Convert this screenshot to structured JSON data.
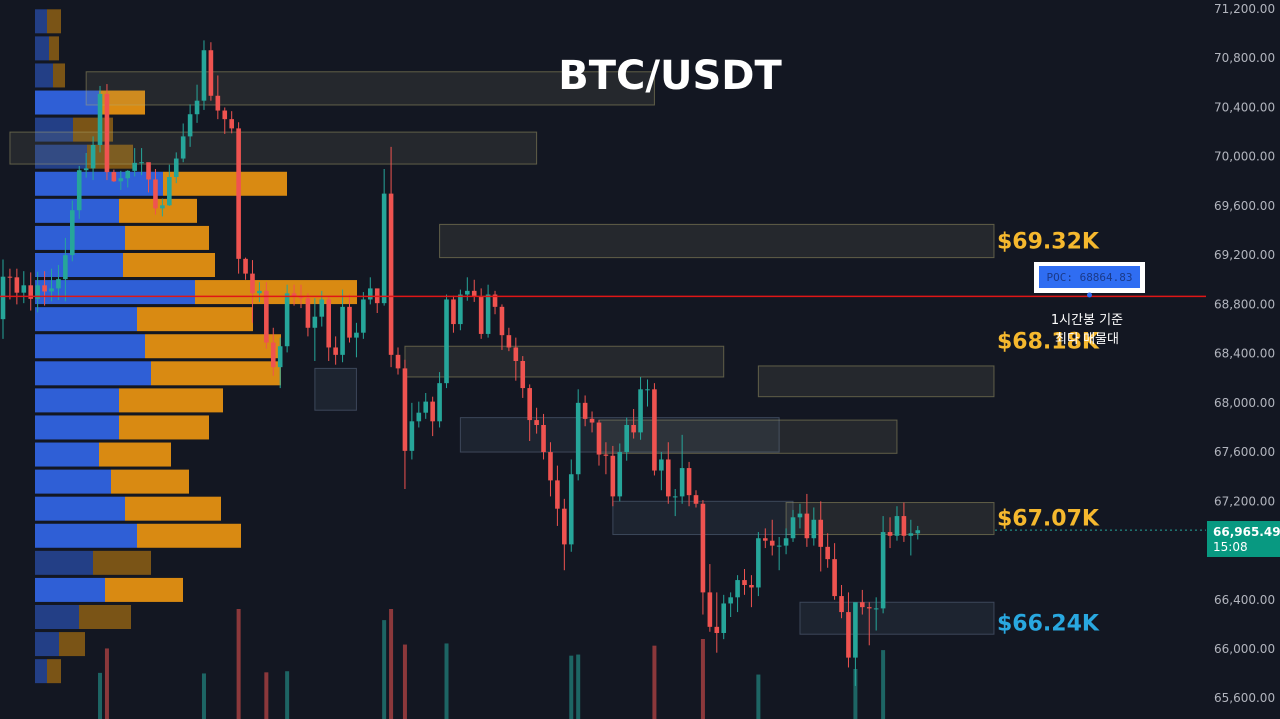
{
  "chart_data": {
    "type": "candlestick",
    "title": "BTC/USDT",
    "ylim": [
      65500,
      71300
    ],
    "y_ticks": [
      "71,200.00",
      "70,800.00",
      "70,400.00",
      "70,000.00",
      "69,600.00",
      "69,200.00",
      "68,800.00",
      "68,400.00",
      "68,000.00",
      "67,600.00",
      "67,200.00",
      "66,800.00",
      "66,400.00",
      "66,000.00",
      "65,600.00"
    ],
    "y_tick_values": [
      71200,
      70800,
      70400,
      70000,
      69600,
      69200,
      68800,
      68400,
      68000,
      67600,
      67200,
      66800,
      66400,
      66000,
      65600
    ],
    "current_price": {
      "label": "66,965.49",
      "countdown": "15:08",
      "value": 66965.49
    },
    "poc": {
      "label": "POC: 68864.83",
      "value": 68864.83
    },
    "note_lines": [
      "1시간봉 기준",
      "최다 매물대"
    ],
    "levels": [
      {
        "label": "$69.32K",
        "value": 69320,
        "color": "#f5b82e"
      },
      {
        "label": "$68.18K",
        "value": 68180,
        "color": "#f5b82e"
      },
      {
        "label": "$67.07K",
        "value": 67070,
        "color": "#f5b82e"
      },
      {
        "label": "$66.24K",
        "value": 66240,
        "color": "#29a8e0"
      }
    ],
    "zones": [
      {
        "start": 12,
        "end": 94,
        "low": 70420,
        "high": 70690,
        "kind": "supply"
      },
      {
        "start": 1,
        "end": 77,
        "low": 69940,
        "high": 70200,
        "kind": "supply"
      },
      {
        "start": 63,
        "end": 143,
        "low": 69180,
        "high": 69450,
        "kind": "supply"
      },
      {
        "start": 58,
        "end": 104,
        "low": 68210,
        "high": 68460,
        "kind": "supply"
      },
      {
        "start": 109,
        "end": 143,
        "low": 68050,
        "high": 68300,
        "kind": "supply"
      },
      {
        "start": 86,
        "end": 129,
        "low": 67590,
        "high": 67860,
        "kind": "supply"
      },
      {
        "start": 113,
        "end": 143,
        "low": 66930,
        "high": 67190,
        "kind": "supply"
      },
      {
        "start": 66,
        "end": 112,
        "low": 67600,
        "high": 67880,
        "kind": "demand"
      },
      {
        "start": 88,
        "end": 114,
        "low": 66930,
        "high": 67200,
        "kind": "demand"
      },
      {
        "start": 115,
        "end": 143,
        "low": 66120,
        "high": 66380,
        "kind": "demand"
      },
      {
        "start": 45,
        "end": 51,
        "low": 67940,
        "high": 68280,
        "kind": "demand"
      }
    ],
    "volume_profile": [
      {
        "price": 71100,
        "buy": 12,
        "sell": 14
      },
      {
        "price": 70880,
        "buy": 14,
        "sell": 10
      },
      {
        "price": 70660,
        "buy": 18,
        "sell": 12
      },
      {
        "price": 70440,
        "buy": 64,
        "sell": 46
      },
      {
        "price": 70220,
        "buy": 38,
        "sell": 40
      },
      {
        "price": 70000,
        "buy": 52,
        "sell": 46
      },
      {
        "price": 69780,
        "buy": 128,
        "sell": 124
      },
      {
        "price": 69560,
        "buy": 84,
        "sell": 78
      },
      {
        "price": 69340,
        "buy": 90,
        "sell": 84
      },
      {
        "price": 69120,
        "buy": 88,
        "sell": 92
      },
      {
        "price": 68900,
        "buy": 160,
        "sell": 162
      },
      {
        "price": 68680,
        "buy": 102,
        "sell": 116
      },
      {
        "price": 68460,
        "buy": 110,
        "sell": 136
      },
      {
        "price": 68240,
        "buy": 116,
        "sell": 130
      },
      {
        "price": 68020,
        "buy": 84,
        "sell": 104
      },
      {
        "price": 67800,
        "buy": 84,
        "sell": 90
      },
      {
        "price": 67580,
        "buy": 64,
        "sell": 72
      },
      {
        "price": 67360,
        "buy": 76,
        "sell": 78
      },
      {
        "price": 67140,
        "buy": 90,
        "sell": 96
      },
      {
        "price": 66920,
        "buy": 102,
        "sell": 104
      },
      {
        "price": 66700,
        "buy": 58,
        "sell": 58
      },
      {
        "price": 66480,
        "buy": 70,
        "sell": 78
      },
      {
        "price": 66260,
        "buy": 44,
        "sell": 52
      },
      {
        "price": 66040,
        "buy": 24,
        "sell": 26
      },
      {
        "price": 65820,
        "buy": 12,
        "sell": 14
      }
    ],
    "candles": [
      [
        68680,
        69025,
        68520,
        69165
      ],
      [
        69025,
        69020,
        68840,
        69090
      ],
      [
        69020,
        68895,
        68800,
        69090
      ],
      [
        68895,
        68955,
        68810,
        69070
      ],
      [
        68955,
        68845,
        68750,
        69060
      ],
      [
        68845,
        68955,
        68735,
        69065
      ],
      [
        68955,
        68905,
        68790,
        69070
      ],
      [
        68905,
        68930,
        68825,
        69090
      ],
      [
        68930,
        69005,
        68835,
        69120
      ],
      [
        69005,
        69200,
        68825,
        69340
      ],
      [
        69200,
        69565,
        69150,
        69645
      ],
      [
        69565,
        69890,
        69495,
        69925
      ],
      [
        69890,
        69905,
        69830,
        70030
      ],
      [
        69905,
        70095,
        69810,
        70165
      ],
      [
        70095,
        70510,
        70035,
        70575
      ],
      [
        70510,
        69875,
        69810,
        70590
      ],
      [
        69875,
        69800,
        69795,
        69895
      ],
      [
        69800,
        69825,
        69730,
        69885
      ],
      [
        69825,
        69885,
        69750,
        69890
      ],
      [
        69885,
        69950,
        69840,
        70070
      ],
      [
        69950,
        69955,
        69850,
        70070
      ],
      [
        69955,
        69815,
        69710,
        69920
      ],
      [
        69815,
        69580,
        69530,
        69900
      ],
      [
        69580,
        69605,
        69515,
        69660
      ],
      [
        69605,
        69835,
        69600,
        69935
      ],
      [
        69835,
        69985,
        69785,
        70035
      ],
      [
        69985,
        70165,
        69955,
        70270
      ],
      [
        70165,
        70345,
        70080,
        70425
      ],
      [
        70345,
        70455,
        70275,
        70585
      ],
      [
        70455,
        70865,
        70380,
        70945
      ],
      [
        70865,
        70495,
        70455,
        70930
      ],
      [
        70495,
        70375,
        70305,
        70660
      ],
      [
        70375,
        70305,
        70185,
        70400
      ],
      [
        70305,
        70230,
        70190,
        70370
      ],
      [
        70230,
        69170,
        69050,
        70280
      ],
      [
        69170,
        69050,
        69000,
        69180
      ],
      [
        69050,
        68890,
        68650,
        69160
      ],
      [
        68890,
        68910,
        68820,
        68980
      ],
      [
        68910,
        68490,
        68440,
        68980
      ],
      [
        68490,
        68290,
        68220,
        68610
      ],
      [
        68290,
        68460,
        68120,
        68530
      ],
      [
        68460,
        68890,
        68410,
        68960
      ],
      [
        68890,
        68860,
        68790,
        68960
      ],
      [
        68860,
        68850,
        68770,
        68960
      ],
      [
        68850,
        68610,
        68540,
        68890
      ],
      [
        68610,
        68700,
        68340,
        68850
      ],
      [
        68700,
        68840,
        68620,
        68910
      ],
      [
        68840,
        68450,
        68340,
        68870
      ],
      [
        68450,
        68390,
        68310,
        68540
      ],
      [
        68390,
        68780,
        68330,
        68920
      ],
      [
        68780,
        68530,
        68490,
        68880
      ],
      [
        68530,
        68570,
        68370,
        68650
      ],
      [
        68570,
        68840,
        68520,
        68900
      ],
      [
        68840,
        68930,
        68800,
        69020
      ],
      [
        68930,
        68810,
        68730,
        68920
      ],
      [
        68810,
        69700,
        68790,
        69900
      ],
      [
        69700,
        68390,
        68290,
        70080
      ],
      [
        68390,
        68280,
        68230,
        68450
      ],
      [
        68280,
        67610,
        67300,
        68350
      ],
      [
        67610,
        67850,
        67540,
        68000
      ],
      [
        67850,
        67920,
        67800,
        68010
      ],
      [
        67920,
        68010,
        67870,
        68080
      ],
      [
        68010,
        67850,
        67730,
        68050
      ],
      [
        67850,
        68160,
        67800,
        68250
      ],
      [
        68160,
        68840,
        68120,
        68880
      ],
      [
        68840,
        68640,
        68570,
        68870
      ],
      [
        68640,
        68880,
        68590,
        68920
      ],
      [
        68880,
        68910,
        68830,
        69020
      ],
      [
        68910,
        68860,
        68820,
        69000
      ],
      [
        68860,
        68560,
        68520,
        68930
      ],
      [
        68560,
        68880,
        68530,
        68960
      ],
      [
        68880,
        68780,
        68720,
        68910
      ],
      [
        68780,
        68550,
        68430,
        68800
      ],
      [
        68550,
        68450,
        68420,
        68610
      ],
      [
        68450,
        68340,
        68180,
        68530
      ],
      [
        68340,
        68120,
        68040,
        68380
      ],
      [
        68120,
        67860,
        67690,
        68150
      ],
      [
        67860,
        67820,
        67750,
        67960
      ],
      [
        67820,
        67600,
        67540,
        67910
      ],
      [
        67600,
        67370,
        67240,
        67680
      ],
      [
        67370,
        67140,
        67000,
        67490
      ],
      [
        67140,
        66850,
        66640,
        67220
      ],
      [
        66850,
        67420,
        66790,
        67540
      ],
      [
        67420,
        68000,
        67370,
        68110
      ],
      [
        68000,
        67870,
        67810,
        68060
      ],
      [
        67870,
        67840,
        67760,
        67930
      ],
      [
        67840,
        67580,
        67490,
        67860
      ],
      [
        67580,
        67570,
        67420,
        67680
      ],
      [
        67570,
        67240,
        67160,
        67650
      ],
      [
        67240,
        67600,
        67200,
        67670
      ],
      [
        67600,
        67820,
        67530,
        67880
      ],
      [
        67820,
        67760,
        67710,
        67950
      ],
      [
        67760,
        68110,
        67700,
        68210
      ],
      [
        68110,
        68110,
        67970,
        68190
      ],
      [
        68110,
        67450,
        67410,
        68160
      ],
      [
        67450,
        67540,
        67290,
        67600
      ],
      [
        67540,
        67240,
        67180,
        67680
      ],
      [
        67240,
        67240,
        67080,
        67300
      ],
      [
        67240,
        67470,
        67180,
        67740
      ],
      [
        67470,
        67250,
        67160,
        67520
      ],
      [
        67250,
        67180,
        67150,
        67290
      ],
      [
        67180,
        66460,
        66280,
        67210
      ],
      [
        66460,
        66180,
        66140,
        66690
      ],
      [
        66180,
        66130,
        65970,
        66460
      ],
      [
        66130,
        66370,
        66080,
        66440
      ],
      [
        66370,
        66420,
        66260,
        66460
      ],
      [
        66420,
        66560,
        66300,
        66600
      ],
      [
        66560,
        66520,
        66440,
        66650
      ],
      [
        66520,
        66500,
        66340,
        66600
      ],
      [
        66500,
        66900,
        66430,
        66950
      ],
      [
        66900,
        66880,
        66820,
        66980
      ],
      [
        66880,
        66840,
        66760,
        67050
      ],
      [
        66840,
        66840,
        66640,
        66910
      ],
      [
        66840,
        66900,
        66770,
        66980
      ],
      [
        66900,
        67070,
        66870,
        67130
      ],
      [
        67070,
        67100,
        66980,
        67180
      ],
      [
        67100,
        66900,
        66830,
        67260
      ],
      [
        66900,
        67050,
        66840,
        67150
      ],
      [
        67050,
        66830,
        66630,
        67200
      ],
      [
        66830,
        66730,
        66660,
        66940
      ],
      [
        66730,
        66430,
        66400,
        66860
      ],
      [
        66430,
        66300,
        66250,
        66520
      ],
      [
        66300,
        65930,
        65850,
        66460
      ],
      [
        65930,
        66380,
        65700,
        66370
      ],
      [
        66380,
        66340,
        66280,
        66480
      ],
      [
        66340,
        66330,
        66030,
        66380
      ],
      [
        66330,
        66330,
        66150,
        66420
      ],
      [
        66330,
        66950,
        66290,
        67080
      ],
      [
        66950,
        66920,
        66820,
        67070
      ],
      [
        66920,
        67080,
        66880,
        67160
      ],
      [
        67080,
        66920,
        66870,
        67190
      ],
      [
        66920,
        66940,
        66760,
        67050
      ],
      [
        66940,
        66965,
        66890,
        67000
      ]
    ]
  }
}
